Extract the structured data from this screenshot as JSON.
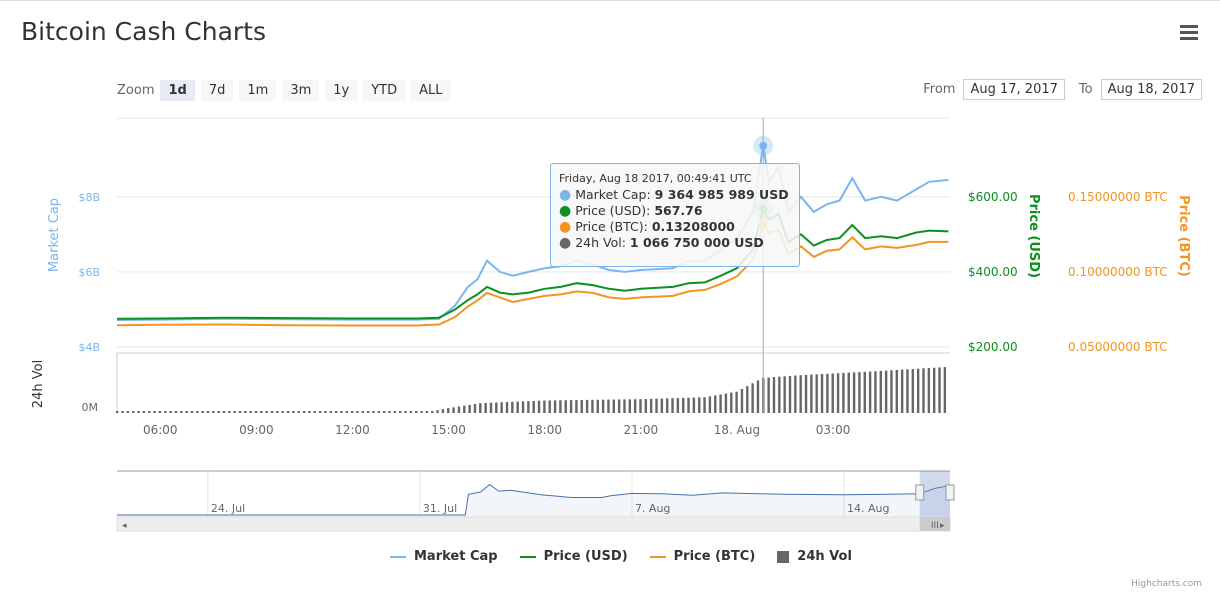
{
  "title": "Bitcoin Cash Charts",
  "zoom": {
    "label": "Zoom",
    "buttons": [
      "1d",
      "7d",
      "1m",
      "3m",
      "1y",
      "YTD",
      "ALL"
    ],
    "active": "1d"
  },
  "range": {
    "from_label": "From",
    "from": "Aug 17, 2017",
    "to_label": "To",
    "to": "Aug 18, 2017"
  },
  "tooltip": {
    "date": "Friday, Aug 18 2017, 00:49:41 UTC",
    "rows": [
      {
        "label": "Market Cap: ",
        "value": "9 364 985 989 USD"
      },
      {
        "label": "Price (USD): ",
        "value": "567.76"
      },
      {
        "label": "Price (BTC): ",
        "value": "0.13208000"
      },
      {
        "label": "24h Vol: ",
        "value": "1 066 750 000 USD"
      }
    ]
  },
  "legend": [
    "Market Cap",
    "Price (USD)",
    "Price (BTC)",
    "24h Vol"
  ],
  "credits": "Highcharts.com",
  "colors": {
    "mc": "#7cb5ec",
    "usd": "#0d8f22",
    "btc": "#f39423",
    "vol": "#666666"
  },
  "chart_data": {
    "type": "line",
    "x_unit": "hours since Aug 17 2017 00:00 UTC",
    "x_range": [
      4.65,
      30.65
    ],
    "x_ticks": [
      {
        "h": 6,
        "label": "06:00"
      },
      {
        "h": 9,
        "label": "09:00"
      },
      {
        "h": 12,
        "label": "12:00"
      },
      {
        "h": 15,
        "label": "15:00"
      },
      {
        "h": 18,
        "label": "18:00"
      },
      {
        "h": 21,
        "label": "21:00"
      },
      {
        "h": 24,
        "label": "18. Aug"
      },
      {
        "h": 27,
        "label": "03:00"
      }
    ],
    "axes": {
      "mc": {
        "title": "Market Cap",
        "ticks": [
          {
            "v": 4,
            "label": "$4B"
          },
          {
            "v": 6,
            "label": "$6B"
          },
          {
            "v": 8,
            "label": "$8B"
          }
        ],
        "range": [
          4,
          10.1
        ]
      },
      "usd": {
        "title": "Price (USD)",
        "ticks": [
          {
            "v": 200,
            "label": "$200.00"
          },
          {
            "v": 400,
            "label": "$400.00"
          },
          {
            "v": 600,
            "label": "$600.00"
          }
        ],
        "range": [
          200,
          810
        ]
      },
      "btc": {
        "title": "Price (BTC)",
        "ticks": [
          {
            "v": 0.05,
            "label": "0.05000000 BTC"
          },
          {
            "v": 0.1,
            "label": "0.10000000 BTC"
          },
          {
            "v": 0.15,
            "label": "0.15000000 BTC"
          }
        ],
        "range": [
          0.05,
          0.2025
        ]
      },
      "vol": {
        "title": "24h Vol",
        "ticks": [
          {
            "v": 0,
            "label": "0M"
          }
        ],
        "range": [
          0,
          1700
        ]
      }
    },
    "series_columns": [
      "hour",
      "market_cap_B",
      "price_usd",
      "price_btc"
    ],
    "series": [
      [
        4.65,
        4.72,
        275,
        0.0645
      ],
      [
        6,
        4.73,
        276,
        0.0648
      ],
      [
        8,
        4.75,
        278,
        0.065
      ],
      [
        10,
        4.74,
        277,
        0.0645
      ],
      [
        12,
        4.73,
        276,
        0.0643
      ],
      [
        14,
        4.73,
        276,
        0.0643
      ],
      [
        14.7,
        4.75,
        278,
        0.065
      ],
      [
        15.2,
        5.1,
        300,
        0.07
      ],
      [
        15.6,
        5.6,
        325,
        0.077
      ],
      [
        15.9,
        5.8,
        340,
        0.081
      ],
      [
        16.2,
        6.3,
        360,
        0.086
      ],
      [
        16.6,
        6.0,
        345,
        0.083
      ],
      [
        17.0,
        5.9,
        340,
        0.08
      ],
      [
        17.5,
        6.0,
        345,
        0.082
      ],
      [
        18.0,
        6.1,
        355,
        0.084
      ],
      [
        18.5,
        6.15,
        360,
        0.085
      ],
      [
        19.0,
        6.3,
        370,
        0.087
      ],
      [
        19.5,
        6.2,
        365,
        0.086
      ],
      [
        20.0,
        6.05,
        355,
        0.083
      ],
      [
        20.5,
        6.0,
        350,
        0.082
      ],
      [
        21.0,
        6.05,
        355,
        0.083
      ],
      [
        22.0,
        6.1,
        360,
        0.084
      ],
      [
        22.5,
        6.3,
        370,
        0.087
      ],
      [
        23.0,
        6.3,
        372,
        0.088
      ],
      [
        23.5,
        6.6,
        390,
        0.092
      ],
      [
        24.0,
        6.9,
        410,
        0.097
      ],
      [
        24.5,
        7.6,
        460,
        0.108
      ],
      [
        24.82,
        9.36,
        567.76,
        0.13208
      ],
      [
        25.0,
        8.4,
        540,
        0.126
      ],
      [
        25.3,
        8.8,
        555,
        0.128
      ],
      [
        25.6,
        7.6,
        480,
        0.112
      ],
      [
        26.0,
        8.0,
        500,
        0.117
      ],
      [
        26.4,
        7.6,
        470,
        0.11
      ],
      [
        26.8,
        7.8,
        485,
        0.114
      ],
      [
        27.2,
        7.9,
        490,
        0.115
      ],
      [
        27.6,
        8.5,
        525,
        0.123
      ],
      [
        28.0,
        7.9,
        490,
        0.115
      ],
      [
        28.5,
        8.0,
        495,
        0.117
      ],
      [
        29.0,
        7.9,
        490,
        0.116
      ],
      [
        29.6,
        8.2,
        505,
        0.118
      ],
      [
        30.0,
        8.4,
        510,
        0.12
      ],
      [
        30.6,
        8.45,
        508,
        0.12
      ]
    ],
    "volume_M": [
      [
        4.65,
        60
      ],
      [
        14.5,
        60
      ],
      [
        15,
        150
      ],
      [
        16,
        300
      ],
      [
        18,
        380
      ],
      [
        21,
        420
      ],
      [
        23,
        480
      ],
      [
        24,
        650
      ],
      [
        24.8,
        1066
      ],
      [
        26,
        1150
      ],
      [
        28,
        1250
      ],
      [
        30.6,
        1400
      ]
    ],
    "highlight_hour": 24.82,
    "navigator": {
      "x_ticks": [
        "24. Jul",
        "31. Jul",
        "7. Aug",
        "14. Aug"
      ],
      "x_unit": "days since Jul 21 2017",
      "range": [
        0,
        27.5
      ],
      "selected": [
        26.5,
        27.5
      ],
      "values": [
        [
          0,
          0
        ],
        [
          11.5,
          0
        ],
        [
          11.6,
          4.5
        ],
        [
          12,
          5
        ],
        [
          12.3,
          6.6
        ],
        [
          12.6,
          5.2
        ],
        [
          13,
          5.4
        ],
        [
          14,
          4.4
        ],
        [
          15,
          3.8
        ],
        [
          16,
          3.8
        ],
        [
          16.3,
          4.2
        ],
        [
          17,
          4.7
        ],
        [
          18,
          4.6
        ],
        [
          19,
          4.3
        ],
        [
          20,
          4.8
        ],
        [
          22,
          4.5
        ],
        [
          24,
          4.4
        ],
        [
          26.5,
          4.6
        ],
        [
          27,
          5.8
        ],
        [
          27.5,
          6.4
        ]
      ]
    }
  }
}
